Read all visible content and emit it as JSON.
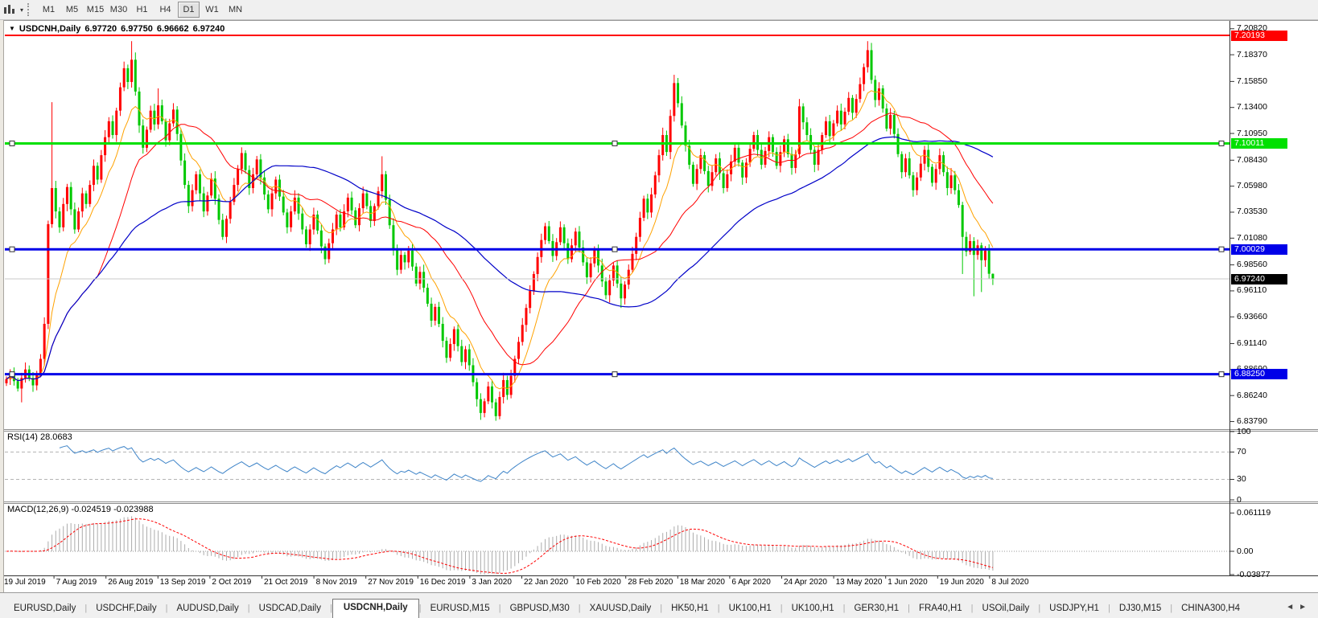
{
  "toolbar": {
    "chart_icon": "candlestick-chart-icon",
    "dropdown_caret": "▾",
    "timeframes": [
      {
        "label": "M1",
        "active": false
      },
      {
        "label": "M5",
        "active": false
      },
      {
        "label": "M15",
        "active": false
      },
      {
        "label": "M30",
        "active": false
      },
      {
        "label": "H1",
        "active": false
      },
      {
        "label": "H4",
        "active": false
      },
      {
        "label": "D1",
        "active": true
      },
      {
        "label": "W1",
        "active": false
      },
      {
        "label": "MN",
        "active": false
      }
    ]
  },
  "chart": {
    "collapse_arrow": "▼",
    "symbol_header": "USDCNH,Daily",
    "ohlc": {
      "open": "6.97720",
      "high": "6.97750",
      "low": "6.96662",
      "close": "6.97240"
    },
    "price_axis_ticks": [
      "7.20820",
      "7.18370",
      "7.15850",
      "7.13400",
      "7.10950",
      "7.08430",
      "7.05980",
      "7.03530",
      "7.01080",
      "6.98560",
      "6.96110",
      "6.93660",
      "6.91140",
      "6.88690",
      "6.86240",
      "6.83790"
    ],
    "hlines": [
      {
        "price": 7.20193,
        "label": "7.20193",
        "color": "#ff0000",
        "width": 2,
        "handles": false
      },
      {
        "price": 7.10011,
        "label": "7.10011",
        "color": "#00e000",
        "width": 3,
        "handles": true
      },
      {
        "price": 7.00029,
        "label": "7.00029",
        "color": "#0000e8",
        "width": 3,
        "handles": true
      },
      {
        "price": 6.8825,
        "label": "6.88250",
        "color": "#0000e8",
        "width": 3,
        "handles": true
      }
    ],
    "current_price": {
      "value": 6.9724,
      "label": "6.97240",
      "line_color": "#c8c8c8",
      "label_bg": "#000000"
    }
  },
  "chart_data": {
    "type": "candlestick",
    "symbol": "USDCNH",
    "timeframe": "Daily",
    "up_color": "#ff0000",
    "down_color": "#00c800",
    "first_open": 6.874,
    "closes": [
      6.878,
      6.883,
      6.876,
      6.869,
      6.879,
      6.887,
      6.879,
      6.872,
      6.883,
      6.897,
      6.93,
      7.024,
      7.058,
      7.036,
      7.021,
      7.043,
      7.059,
      7.038,
      7.019,
      7.036,
      7.053,
      7.043,
      7.061,
      7.079,
      7.066,
      7.089,
      7.106,
      7.121,
      7.108,
      7.131,
      7.153,
      7.171,
      7.158,
      7.179,
      7.149,
      7.117,
      7.096,
      7.113,
      7.131,
      7.118,
      7.136,
      7.121,
      7.103,
      7.119,
      7.132,
      7.109,
      7.084,
      7.061,
      7.041,
      7.056,
      7.071,
      7.053,
      7.036,
      7.051,
      7.067,
      7.048,
      7.028,
      7.012,
      7.029,
      7.045,
      7.061,
      7.076,
      7.091,
      7.075,
      7.058,
      7.071,
      7.085,
      7.068,
      7.052,
      7.038,
      7.053,
      7.066,
      7.05,
      7.035,
      7.021,
      7.036,
      7.049,
      7.034,
      7.019,
      7.005,
      7.019,
      7.033,
      7.018,
      7.003,
      6.991,
      7.006,
      7.019,
      7.033,
      7.021,
      7.036,
      7.049,
      7.037,
      7.023,
      7.039,
      7.053,
      7.041,
      7.027,
      7.041,
      7.055,
      7.071,
      7.047,
      7.023,
      7.001,
      6.981,
      6.995,
      6.988,
      6.999,
      6.984,
      6.968,
      6.979,
      6.964,
      6.949,
      6.933,
      6.946,
      6.93,
      6.914,
      6.898,
      6.911,
      6.925,
      6.909,
      6.894,
      6.906,
      6.891,
      6.875,
      6.859,
      6.846,
      6.857,
      6.871,
      6.856,
      6.843,
      6.861,
      6.877,
      6.863,
      6.881,
      6.897,
      6.913,
      6.929,
      6.945,
      6.961,
      6.977,
      6.993,
      7.009,
      7.022,
      7.008,
      6.994,
      7.007,
      7.021,
      7.006,
      6.991,
      7.004,
      7.017,
      7.002,
      6.988,
      6.974,
      6.987,
      7.0,
      6.985,
      6.97,
      6.957,
      6.971,
      6.985,
      6.968,
      6.954,
      6.967,
      6.981,
      6.996,
      7.012,
      7.03,
      7.048,
      7.035,
      7.052,
      7.07,
      7.089,
      7.108,
      7.092,
      7.126,
      7.157,
      7.138,
      7.117,
      7.098,
      7.08,
      7.062,
      7.076,
      7.089,
      7.074,
      7.06,
      7.073,
      7.086,
      7.072,
      7.058,
      7.071,
      7.083,
      7.096,
      7.082,
      7.068,
      7.082,
      7.095,
      7.108,
      7.094,
      7.08,
      7.093,
      7.106,
      7.092,
      7.079,
      7.092,
      7.104,
      7.09,
      7.077,
      7.09,
      7.135,
      7.12,
      7.108,
      7.094,
      7.08,
      7.094,
      7.108,
      7.121,
      7.107,
      7.119,
      7.131,
      7.118,
      7.13,
      7.143,
      7.129,
      7.142,
      7.156,
      7.172,
      7.188,
      7.16,
      7.141,
      7.152,
      7.133,
      7.114,
      7.127,
      7.109,
      7.09,
      7.073,
      7.086,
      7.07,
      7.056,
      7.068,
      7.081,
      7.094,
      7.078,
      7.063,
      7.076,
      7.089,
      7.073,
      7.058,
      7.07,
      7.056,
      7.042,
      7.012,
      6.998,
      7.008,
      6.995,
      7.004,
      6.99,
      6.999,
      6.9772,
      6.9724
    ],
    "spike_highs": {
      "12": 7.139,
      "33": 7.1965,
      "40": 7.152,
      "99": 7.088,
      "176": 7.1648,
      "209": 7.142,
      "227": 7.1965
    },
    "spike_lows": {
      "4": 6.856,
      "125": 6.8395,
      "129": 6.842,
      "162": 6.945,
      "252": 6.977,
      "255": 6.956,
      "257": 6.96
    },
    "last_ohlc": [
      6.9772,
      6.9775,
      6.96662,
      6.9724
    ],
    "x_labels": [
      "19 Jul 2019",
      "7 Aug 2019",
      "26 Aug 2019",
      "13 Sep 2019",
      "2 Oct 2019",
      "21 Oct 2019",
      "8 Nov 2019",
      "27 Nov 2019",
      "16 Dec 2019",
      "3 Jan 2020",
      "22 Jan 2020",
      "10 Feb 2020",
      "28 Feb 2020",
      "18 Mar 2020",
      "6 Apr 2020",
      "24 Apr 2020",
      "13 May 2020",
      "1 Jun 2020",
      "19 Jun 2020",
      "8 Jul 2020"
    ],
    "moving_averages": [
      {
        "name": "EMA10",
        "color": "#ffa200",
        "width": 1
      },
      {
        "name": "SMA25",
        "color": "#ff0000",
        "width": 1
      },
      {
        "name": "SMA60",
        "color": "#0000c8",
        "width": 1.2
      }
    ]
  },
  "rsi": {
    "header": "RSI(14) 28.0683",
    "period": 14,
    "line_color": "#3e84c8",
    "levels": [
      {
        "value": 100,
        "label": "100"
      },
      {
        "value": 70,
        "label": "70",
        "dashed": true
      },
      {
        "value": 30,
        "label": "30",
        "dashed": true
      },
      {
        "value": 0,
        "label": "0"
      }
    ]
  },
  "macd": {
    "header": "MACD(12,26,9) -0.024519 -0.023988",
    "histogram_color": "#ababab",
    "signal_color": "#ff0000",
    "scale_labels": [
      {
        "value": 0.061119,
        "label": "0.061119"
      },
      {
        "value": 0,
        "label": "0.00"
      },
      {
        "value": -0.03877,
        "label": "-0.03877"
      }
    ]
  },
  "tabs": {
    "items": [
      {
        "label": "EURUSD,Daily",
        "active": false
      },
      {
        "label": "USDCHF,Daily",
        "active": false
      },
      {
        "label": "AUDUSD,Daily",
        "active": false
      },
      {
        "label": "USDCAD,Daily",
        "active": false
      },
      {
        "label": "USDCNH,Daily",
        "active": true
      },
      {
        "label": "EURUSD,M15",
        "active": false
      },
      {
        "label": "GBPUSD,M30",
        "active": false
      },
      {
        "label": "XAUUSD,Daily",
        "active": false
      },
      {
        "label": "HK50,H1",
        "active": false
      },
      {
        "label": "UK100,H1",
        "active": false
      },
      {
        "label": "UK100,H1",
        "active": false
      },
      {
        "label": "GER30,H1",
        "active": false
      },
      {
        "label": "FRA40,H1",
        "active": false
      },
      {
        "label": "USOil,Daily",
        "active": false
      },
      {
        "label": "USDJPY,H1",
        "active": false
      },
      {
        "label": "DJ30,M15",
        "active": false
      },
      {
        "label": "CHINA300,H4",
        "active": false
      }
    ],
    "nav_left": "◄",
    "nav_right": "►"
  }
}
